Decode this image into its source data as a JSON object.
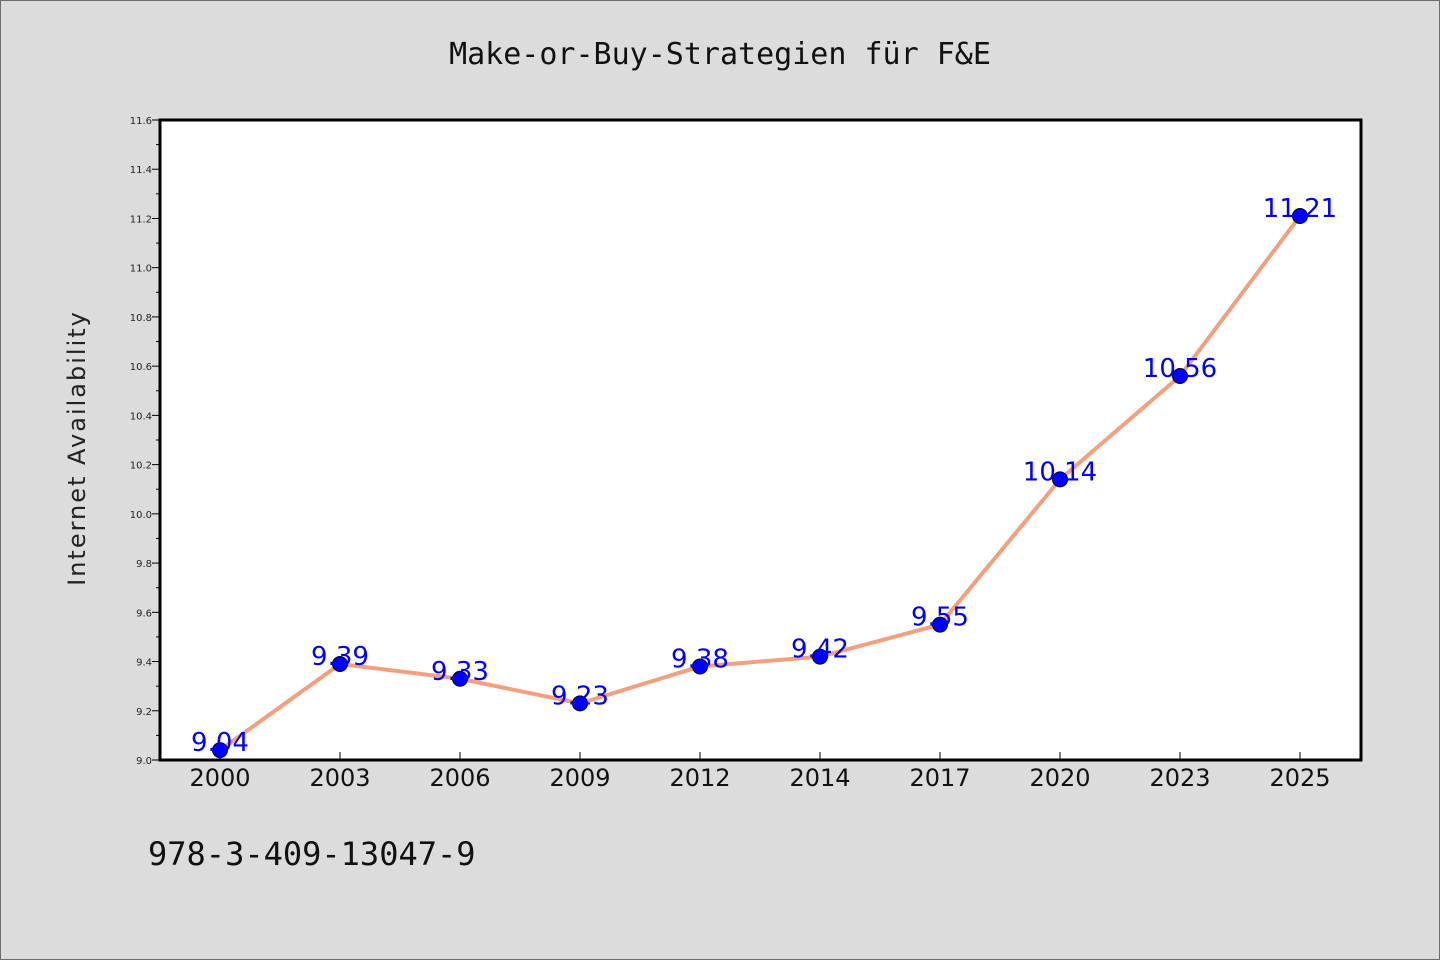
{
  "chart_data": {
    "type": "line",
    "title": "Make-or-Buy-Strategien für F&E",
    "xlabel": "",
    "ylabel": "Internet Availability",
    "categories": [
      "2000",
      "2003",
      "2006",
      "2009",
      "2012",
      "2014",
      "2017",
      "2020",
      "2023",
      "2025"
    ],
    "series": [
      {
        "values": [
          9.04,
          9.39,
          9.33,
          9.23,
          9.38,
          9.42,
          9.55,
          10.14,
          10.56,
          11.21
        ],
        "line_color": "#f4a07e",
        "marker_color": "#0000ff"
      }
    ],
    "data_labels": [
      "9.04",
      "9.39",
      "9.33",
      "9.23",
      "9.38",
      "9.42",
      "9.55",
      "10.14",
      "10.56",
      "11.21"
    ],
    "ylim": [
      9.0,
      11.6
    ],
    "yticks": [
      "9.0",
      "9.2",
      "9.4",
      "9.6",
      "9.8",
      "10.0",
      "10.2",
      "10.4",
      "10.6",
      "10.8",
      "11.0",
      "11.2",
      "11.4",
      "11.6"
    ],
    "grid": false,
    "legend": "none"
  },
  "footnote": "978-3-409-13047-9",
  "colors": {
    "background": "#dcdcdc",
    "plot_background": "#ffffff",
    "line": "#f4a07e",
    "marker": "#0000ff",
    "data_label": "#0000ff"
  }
}
